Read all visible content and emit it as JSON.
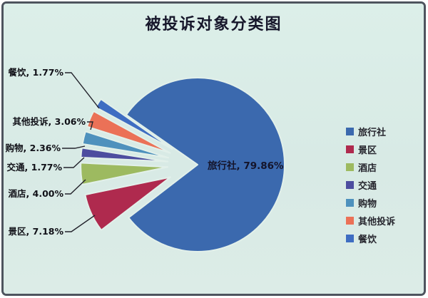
{
  "frame": {
    "background": "#daebe5",
    "border_color": "#4e545e"
  },
  "chart_data": {
    "type": "pie",
    "title": "被投诉对象分类图",
    "legend_position": "right",
    "data_label_format": "category, percent",
    "slices": [
      {
        "label": "旅行社",
        "value": 79.86,
        "pct": "79.86%",
        "color": "#3b69ae",
        "exploded": false,
        "label_placement": "inside"
      },
      {
        "label": "景区",
        "value": 7.18,
        "pct": "7.18%",
        "color": "#af2a4e",
        "exploded": true,
        "label_placement": "outside-left"
      },
      {
        "label": "酒店",
        "value": 4.0,
        "pct": "4.00%",
        "color": "#9dba60",
        "exploded": true,
        "label_placement": "outside-left"
      },
      {
        "label": "交通",
        "value": 1.77,
        "pct": "1.77%",
        "color": "#4d4d9f",
        "exploded": true,
        "label_placement": "outside-left"
      },
      {
        "label": "购物",
        "value": 2.36,
        "pct": "2.36%",
        "color": "#4e91bd",
        "exploded": true,
        "label_placement": "outside-left"
      },
      {
        "label": "其他投诉",
        "value": 3.06,
        "pct": "3.06%",
        "color": "#eb7157",
        "exploded": true,
        "label_placement": "outside-left"
      },
      {
        "label": "餐饮",
        "value": 1.77,
        "pct": "1.77%",
        "color": "#3e6dc2",
        "exploded": true,
        "label_placement": "outside-left"
      }
    ]
  }
}
